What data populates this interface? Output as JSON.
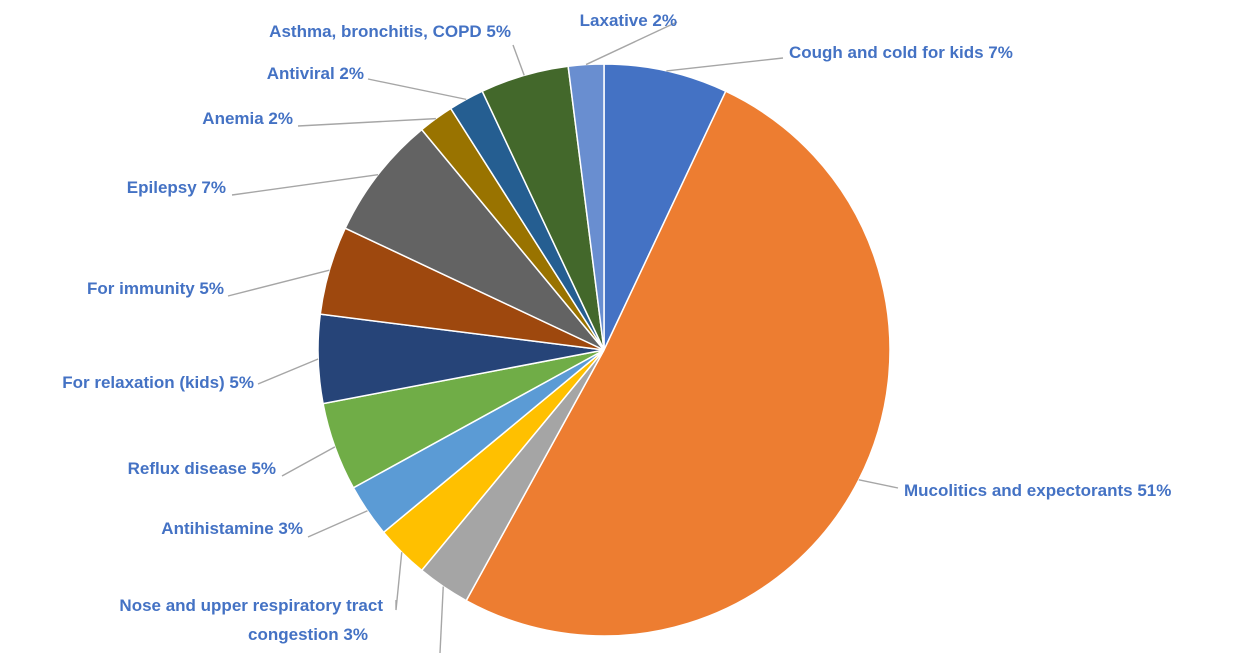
{
  "chart_data": {
    "type": "pie",
    "title": "",
    "slices": [
      {
        "label": "Cough and cold for kids 7%",
        "value": 7,
        "color": "#4472c4"
      },
      {
        "label": "Mucolitics and expectorants 51%",
        "value": 51,
        "color": "#ed7d31"
      },
      {
        "label": "",
        "value": 3,
        "color": "#a5a5a5"
      },
      {
        "label": [
          "Nose and upper respiratory tract",
          "congestion 3%"
        ],
        "value": 3,
        "color": "#ffc000"
      },
      {
        "label": "Antihistamine 3%",
        "value": 3,
        "color": "#5b9bd5"
      },
      {
        "label": "Reflux disease 5%",
        "value": 5,
        "color": "#70ad47"
      },
      {
        "label": "For relaxation (kids) 5%",
        "value": 5,
        "color": "#264478"
      },
      {
        "label": "For immunity 5%",
        "value": 5,
        "color": "#9e480e"
      },
      {
        "label": "Epilepsy 7%",
        "value": 7,
        "color": "#636363"
      },
      {
        "label": "Anemia 2%",
        "value": 2,
        "color": "#997300"
      },
      {
        "label": "Antiviral 2%",
        "value": 2,
        "color": "#255e91"
      },
      {
        "label": "Asthma, bronchitis, COPD 5%",
        "value": 5,
        "color": "#43682b"
      },
      {
        "label": "Laxative 2%",
        "value": 2,
        "color": "#698ed0"
      }
    ],
    "start_angle": "12 o'clock",
    "direction": "clockwise",
    "legend": "none",
    "label_color": "#4472c4"
  }
}
